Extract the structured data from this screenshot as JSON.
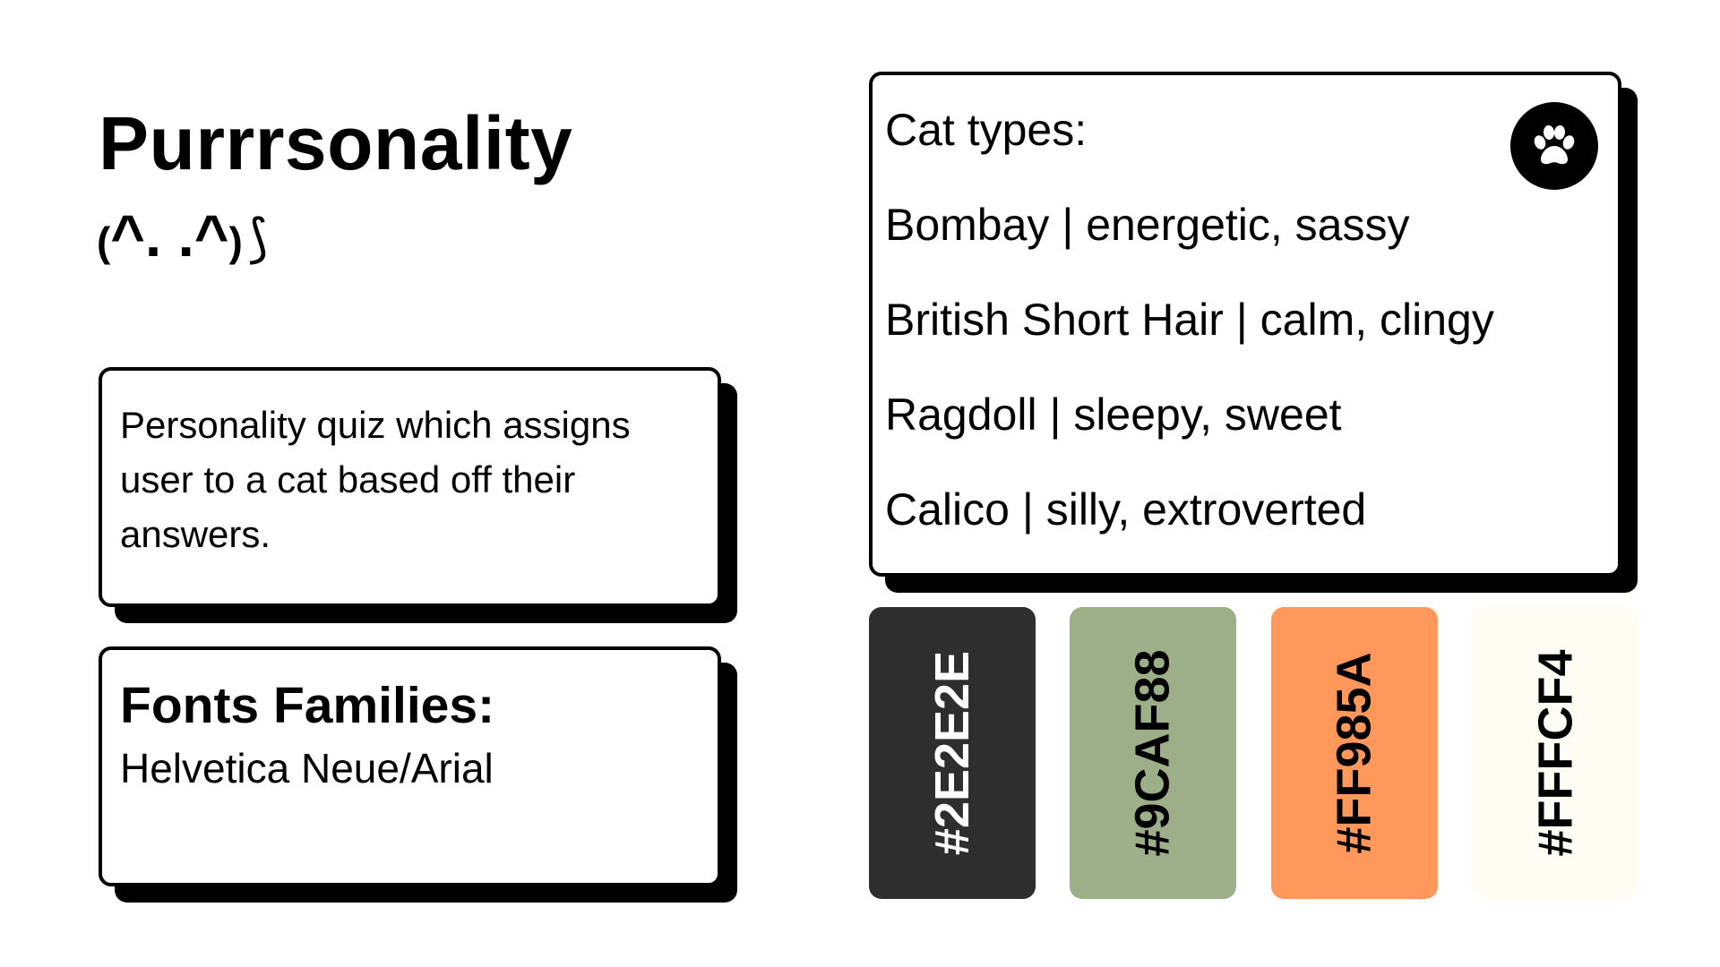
{
  "header": {
    "title": "Purrrsonality",
    "kaomoji": {
      "open_paren": "(",
      "face": "^. .^",
      "close_paren": ")",
      "tail": "⟆"
    }
  },
  "description": {
    "text": "Personality quiz which assigns user to a cat based off their answers."
  },
  "fonts": {
    "heading": "Fonts Families:",
    "value": "Helvetica Neue/Arial"
  },
  "cat_types": {
    "heading": "Cat types:",
    "icon": "paw-icon",
    "items": [
      {
        "label": "Bombay | energetic, sassy"
      },
      {
        "label": "British Short Hair | calm, clingy"
      },
      {
        "label": "Ragdoll | sleepy, sweet"
      },
      {
        "label": "Calico | silly, extroverted"
      }
    ]
  },
  "palette": [
    {
      "label": "#2E2E2E",
      "color": "#2E2E2E",
      "text_color": "#FFFFFF"
    },
    {
      "label": "#9CAF88",
      "color": "#9CAF88",
      "text_color": "#000000"
    },
    {
      "label": "#FF985A",
      "color": "#FF985A",
      "text_color": "#000000"
    },
    {
      "label": "#FFFCF4",
      "color": "#FFFCF4",
      "text_color": "#000000"
    }
  ]
}
